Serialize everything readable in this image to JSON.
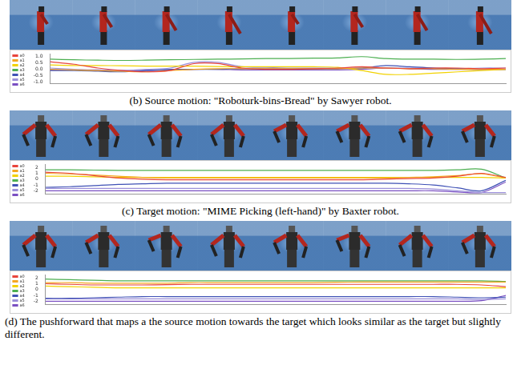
{
  "chart_data": [
    {
      "type": "line",
      "caption": "(b) Source motion: \"Roboturk-bins-Bread\" by Sawyer robot.",
      "x": [
        0,
        1,
        2,
        3,
        4,
        5,
        6,
        7,
        8,
        9,
        10,
        11,
        12,
        13,
        14,
        15,
        16,
        17,
        18,
        19
      ],
      "xlim": [
        0,
        19
      ],
      "ylim": [
        -1.1,
        1.2
      ],
      "yticks": [
        {
          "value": 1.0,
          "label": "1.0"
        },
        0.5,
        {
          "value": 0.0,
          "label": "0.0"
        },
        -0.5,
        {
          "value": -1.0,
          "label": "-1.0"
        }
      ],
      "grid": false,
      "legend": "left",
      "tick_labels": "y",
      "series": [
        {
          "name": "a0",
          "color": "#e8453c",
          "values": [
            0.6,
            0.4,
            0.1,
            -0.1,
            -0.2,
            -0.1,
            0.45,
            0.45,
            0.1,
            0.0,
            0.0,
            0.05,
            0.1,
            0.2,
            0.1,
            0.05,
            0.1,
            0.1,
            0.05,
            0.1
          ]
        },
        {
          "name": "a1",
          "color": "#f5a623",
          "values": [
            0.0,
            -0.05,
            -0.1,
            -0.15,
            -0.2,
            -0.1,
            0.0,
            0.05,
            0.05,
            0.05,
            0.05,
            0.05,
            0.05,
            0.1,
            0.1,
            0.05,
            0.05,
            0.0,
            0.0,
            0.0
          ]
        },
        {
          "name": "a2",
          "color": "#f2d200",
          "values": [
            0.35,
            0.3,
            0.3,
            0.28,
            0.25,
            0.25,
            0.25,
            0.22,
            0.2,
            0.2,
            0.2,
            0.2,
            0.15,
            -0.1,
            -0.4,
            -0.4,
            -0.3,
            -0.2,
            -0.1,
            0.0
          ]
        },
        {
          "name": "a3",
          "color": "#4caf50",
          "values": [
            0.8,
            0.75,
            0.72,
            0.7,
            0.72,
            0.75,
            0.78,
            0.8,
            0.82,
            0.85,
            0.85,
            0.88,
            0.9,
            1.0,
            0.85,
            0.8,
            0.8,
            0.78,
            0.8,
            0.85
          ]
        },
        {
          "name": "a4",
          "color": "#3f51b5",
          "values": [
            -0.1,
            -0.1,
            -0.15,
            -0.2,
            -0.1,
            0.0,
            0.0,
            0.0,
            0.05,
            0.05,
            0.05,
            0.05,
            0.05,
            0.1,
            0.3,
            0.2,
            0.1,
            0.05,
            0.0,
            0.0
          ]
        },
        {
          "name": "a5",
          "color": "#9b8fd9",
          "values": [
            0.1,
            0.0,
            -0.1,
            -0.1,
            0.0,
            0.1,
            0.55,
            0.55,
            0.2,
            0.15,
            0.1,
            0.1,
            0.1,
            0.1,
            0.1,
            0.1,
            0.1,
            0.05,
            0.1,
            0.1
          ]
        },
        {
          "name": "a6",
          "color": "#7a4fc2",
          "values": [
            -0.05,
            -0.05,
            -0.05,
            -0.1,
            -0.1,
            -0.05,
            0.0,
            0.0,
            -0.05,
            -0.05,
            -0.05,
            -0.05,
            -0.05,
            0.0,
            0.1,
            0.05,
            0.0,
            0.0,
            0.0,
            0.0
          ]
        }
      ]
    },
    {
      "type": "line",
      "caption": "(c) Target motion: \"MIME Picking (left-hand)\" by Baxter robot.",
      "x": [
        0,
        1,
        2,
        3,
        4,
        5,
        6,
        7,
        8,
        9,
        10,
        11,
        12,
        13,
        14,
        15,
        16,
        17,
        18,
        19
      ],
      "xlim": [
        0,
        19
      ],
      "ylim": [
        -2.5,
        2.5
      ],
      "yticks": [
        2,
        1,
        0,
        -1,
        -2
      ],
      "grid": false,
      "legend": "left",
      "tick_labels": "y",
      "series": [
        {
          "name": "a0",
          "color": "#e8453c",
          "values": [
            1.2,
            1.0,
            0.6,
            0.2,
            0.0,
            -0.1,
            -0.1,
            -0.1,
            -0.1,
            -0.1,
            -0.1,
            -0.1,
            -0.1,
            -0.1,
            0.0,
            0.1,
            0.2,
            0.5,
            1.0,
            0.3
          ]
        },
        {
          "name": "a1",
          "color": "#f5a623",
          "values": [
            1.0,
            0.9,
            0.7,
            0.5,
            0.3,
            0.2,
            0.2,
            0.2,
            0.2,
            0.2,
            0.2,
            0.2,
            0.2,
            0.2,
            0.2,
            0.3,
            0.4,
            0.6,
            0.9,
            0.2
          ]
        },
        {
          "name": "a2",
          "color": "#f2d200",
          "values": [
            0.5,
            0.5,
            0.4,
            0.3,
            0.3,
            0.3,
            0.3,
            0.3,
            0.3,
            0.3,
            0.3,
            0.3,
            0.3,
            0.3,
            0.3,
            0.3,
            0.3,
            0.3,
            0.3,
            0.2
          ]
        },
        {
          "name": "a3",
          "color": "#4caf50",
          "values": [
            1.6,
            1.6,
            1.55,
            1.5,
            1.5,
            1.5,
            1.5,
            1.5,
            1.5,
            1.5,
            1.5,
            1.5,
            1.5,
            1.5,
            1.5,
            1.5,
            1.5,
            1.6,
            1.7,
            0.2
          ]
        },
        {
          "name": "a4",
          "color": "#3f51b5",
          "values": [
            -1.4,
            -1.3,
            -1.1,
            -0.9,
            -0.8,
            -0.7,
            -0.7,
            -0.7,
            -0.7,
            -0.7,
            -0.7,
            -0.7,
            -0.7,
            -0.7,
            -0.7,
            -0.8,
            -1.0,
            -1.5,
            -2.0,
            -0.2
          ]
        },
        {
          "name": "a5",
          "color": "#9b8fd9",
          "values": [
            -1.6,
            -1.6,
            -1.6,
            -1.6,
            -1.6,
            -1.6,
            -1.6,
            -1.6,
            -1.6,
            -1.6,
            -1.6,
            -1.6,
            -1.6,
            -1.6,
            -1.6,
            -1.6,
            -1.7,
            -2.0,
            -2.3,
            -2.3
          ]
        },
        {
          "name": "a6",
          "color": "#7a4fc2",
          "values": [
            -2.0,
            -2.0,
            -2.0,
            -2.0,
            -2.0,
            -2.0,
            -2.0,
            -2.0,
            -2.0,
            -2.0,
            -2.0,
            -2.0,
            -2.0,
            -2.0,
            -2.0,
            -2.0,
            -2.0,
            -2.2,
            -2.3,
            -0.5
          ]
        }
      ]
    },
    {
      "type": "line",
      "caption": "(d) The pushforward that maps a the source motion towards the target which looks similar as the target but slightly different.",
      "x": [
        0,
        1,
        2,
        3,
        4,
        5,
        6,
        7,
        8,
        9,
        10,
        11,
        12,
        13,
        14,
        15,
        16,
        17,
        18,
        19
      ],
      "xlim": [
        0,
        19
      ],
      "ylim": [
        -2.5,
        2.5
      ],
      "yticks": [
        2,
        1,
        0,
        -1,
        -2
      ],
      "grid": false,
      "legend": "left",
      "tick_labels": "y",
      "series": [
        {
          "name": "a0",
          "color": "#e8453c",
          "values": [
            1.0,
            0.9,
            0.8,
            0.8,
            0.8,
            0.85,
            0.9,
            0.9,
            0.9,
            0.9,
            0.9,
            0.9,
            0.9,
            0.9,
            0.9,
            0.9,
            0.9,
            0.9,
            0.8,
            0.5
          ]
        },
        {
          "name": "a1",
          "color": "#f5a623",
          "values": [
            1.2,
            1.2,
            1.1,
            1.1,
            1.1,
            1.1,
            1.2,
            1.2,
            1.2,
            1.2,
            1.2,
            1.2,
            1.25,
            1.3,
            1.3,
            1.3,
            1.3,
            1.3,
            1.3,
            1.3
          ]
        },
        {
          "name": "a2",
          "color": "#f2d200",
          "values": [
            0.6,
            0.5,
            0.4,
            0.3,
            0.3,
            0.3,
            0.3,
            0.3,
            0.3,
            0.3,
            0.3,
            0.3,
            0.3,
            0.3,
            0.3,
            0.3,
            0.3,
            0.3,
            0.3,
            0.3
          ]
        },
        {
          "name": "a3",
          "color": "#4caf50",
          "values": [
            1.8,
            1.7,
            1.6,
            1.5,
            1.5,
            1.5,
            1.5,
            1.5,
            1.5,
            1.5,
            1.5,
            1.5,
            1.5,
            1.5,
            1.5,
            1.5,
            1.5,
            1.5,
            1.5,
            1.4
          ]
        },
        {
          "name": "a4",
          "color": "#3f51b5",
          "values": [
            -1.5,
            -1.5,
            -1.4,
            -1.3,
            -1.2,
            -1.2,
            -1.2,
            -1.2,
            -1.2,
            -1.2,
            -1.2,
            -1.2,
            -1.2,
            -1.2,
            -1.2,
            -1.2,
            -1.2,
            -1.3,
            -1.4,
            -1.3
          ]
        },
        {
          "name": "a5",
          "color": "#9b8fd9",
          "values": [
            -1.6,
            -1.6,
            -1.6,
            -1.6,
            -1.6,
            -1.6,
            -1.6,
            -1.6,
            -1.6,
            -1.6,
            -1.6,
            -1.6,
            -1.6,
            -1.6,
            -1.6,
            -1.6,
            -1.6,
            -1.6,
            -1.7,
            -1.6
          ]
        },
        {
          "name": "a6",
          "color": "#7a4fc2",
          "values": [
            -2.0,
            -2.0,
            -2.0,
            -2.0,
            -2.0,
            -2.0,
            -2.0,
            -2.0,
            -2.0,
            -2.0,
            -2.0,
            -2.0,
            -2.0,
            -2.0,
            -2.0,
            -2.0,
            -2.0,
            -2.0,
            -1.9,
            -1.0
          ]
        }
      ]
    }
  ]
}
